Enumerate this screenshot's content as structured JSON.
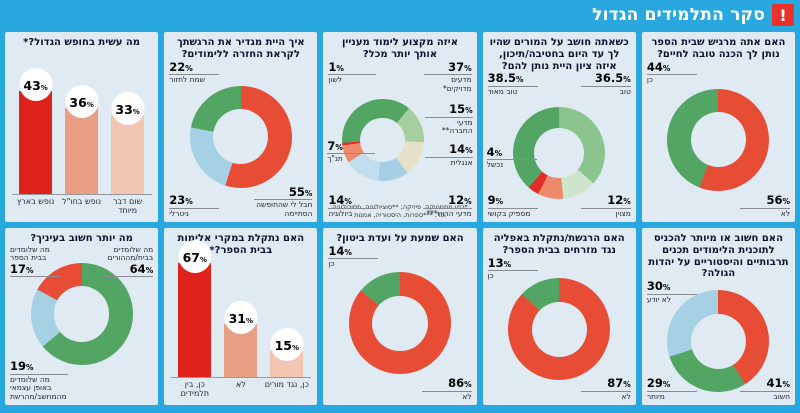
{
  "header": {
    "title": "סקר התלמידים הגדול",
    "icon": "!"
  },
  "unit": "%",
  "colors": {
    "page_bg": "#29a8e0",
    "panel_bg": "#dfeaf2",
    "header_icon_bg": "#e8312a",
    "red": "#e74c35",
    "green": "#52a563",
    "light_green": "#8cc48e",
    "pale_green": "#cfe5cb",
    "beige": "#e5e1c8",
    "light_blue": "#a6d0e4",
    "pale_blue": "#c2ddee",
    "salmon": "#ee8a6b",
    "bar_red": "#df231c",
    "bar_salmon": "#e89f83",
    "bar_pink": "#f2c6b1"
  },
  "chart_data": [
    {
      "id": "prep",
      "type": "donut",
      "start": 0,
      "title": "האם אתה מרגיש שבית הספר נותן לך הכנה טובה לחיים?",
      "slices": [
        {
          "label": "לא",
          "value": 56,
          "color": "#e74c35",
          "pos": "br"
        },
        {
          "label": "כן",
          "value": 44,
          "color": "#52a563",
          "pos": "tl"
        }
      ]
    },
    {
      "id": "teachers",
      "type": "donut",
      "start": 0,
      "title": "כשאתה חושב על המורים שהיו לך עד היום בחטיבה/תיכון, איזה ציון היית נותן להם?",
      "slices": [
        {
          "label": "טוב",
          "value": 36.5,
          "color": "#8cc48e",
          "pos": "tr"
        },
        {
          "label": "מצוין",
          "value": 12,
          "color": "#cfe5cb",
          "pos": "br"
        },
        {
          "label": "מספיק בקושי",
          "value": 9,
          "color": "#ee8a6b",
          "pos": "bl"
        },
        {
          "label": "נכשל",
          "value": 4,
          "color": "#e02d25",
          "pos": "ml"
        },
        {
          "label": "טוב מאוד",
          "value": 38.5,
          "color": "#52a563",
          "pos": "tl"
        }
      ]
    },
    {
      "id": "subject",
      "type": "donut",
      "start": 266,
      "title": "איזה מקצוע לימוד מעניין אותך יותר מכל?",
      "footnote": "*כמו מתמטיקה, פיזיקה; **סוציולוגיה, פסיכולוגיה וכו'; ***ספרות, היסטוריה, אמנות",
      "slices": [
        {
          "label": "מדעים מדויקים*",
          "value": 37,
          "color": "#52a563",
          "pos": "tr"
        },
        {
          "label": "מדעי החברה**",
          "value": 15,
          "color": "#a5cf9f",
          "pos": "r1"
        },
        {
          "label": "אנגלית",
          "value": 14,
          "color": "#e5e1c8",
          "pos": "r2"
        },
        {
          "label": "מדעי הרוח***",
          "value": 12,
          "color": "#a6cfe6",
          "pos": "br"
        },
        {
          "label": "ביולוגיה",
          "value": 14,
          "color": "#c2ddee",
          "pos": "bl"
        },
        {
          "label": "תנ\"ך",
          "value": 7,
          "color": "#ee8a6b",
          "pos": "ml"
        },
        {
          "label": "לשון",
          "value": 1,
          "color": "#e02d25",
          "pos": "tl"
        }
      ]
    },
    {
      "id": "return",
      "type": "donut",
      "start": 0,
      "title": "איך היית מגדיר את הרגשתך לקראת החזרה ללימודים?",
      "slices": [
        {
          "label": "חבל לי שהחופשה הסתיימה",
          "value": 55,
          "color": "#e74c35",
          "pos": "br"
        },
        {
          "label": "ניטרלי",
          "value": 23,
          "color": "#a6d0e4",
          "pos": "bl"
        },
        {
          "label": "שמח לחזור",
          "value": 22,
          "color": "#52a563",
          "pos": "tl"
        }
      ]
    },
    {
      "id": "vacation",
      "type": "bars",
      "scale": 2.4,
      "title": "מה עשית בחופש הגדול?*",
      "bars": [
        {
          "label": "נופש בארץ",
          "value": 43,
          "color": "#df231c"
        },
        {
          "label": "נופש בחו\"ל",
          "value": 36,
          "color": "#e89f83"
        },
        {
          "label": "שום דבר מיוחד",
          "value": 33,
          "color": "#f2c6b1"
        }
      ]
    },
    {
      "id": "diaspora",
      "type": "donut",
      "start": 0,
      "title": "האם חשוב או מיותר להכניס לתוכנית הלימודים תכנים תרבותיים והיסטוריים על יהדות הגולה?",
      "slices": [
        {
          "label": "חשוב",
          "value": 41,
          "color": "#e74c35",
          "pos": "br"
        },
        {
          "label": "מיותר",
          "value": 29,
          "color": "#52a563",
          "pos": "bl"
        },
        {
          "label": "לא יודע",
          "value": 30,
          "color": "#a6d0e4",
          "pos": "tl"
        }
      ]
    },
    {
      "id": "mizrahi",
      "type": "donut",
      "start": 0,
      "title": "האם הרגשת/נתקלת באפליה נגד מזרחים בבית הספר?",
      "slices": [
        {
          "label": "לא",
          "value": 87,
          "color": "#e74c35",
          "pos": "br"
        },
        {
          "label": "כן",
          "value": 13,
          "color": "#52a563",
          "pos": "tl"
        }
      ]
    },
    {
      "id": "biton",
      "type": "donut",
      "start": 0,
      "title": "האם שמעת על ועדת ביטון?",
      "slices": [
        {
          "label": "לא",
          "value": 86,
          "color": "#e74c35",
          "pos": "br"
        },
        {
          "label": "כן",
          "value": 14,
          "color": "#52a563",
          "pos": "tl"
        }
      ]
    },
    {
      "id": "violence",
      "type": "bars",
      "scale": 1.7,
      "title": "האם נתקלת במקרי אלימות בבית הספר?*",
      "bars": [
        {
          "label": "כן, בין תלמידים",
          "value": 67,
          "color": "#df231c"
        },
        {
          "label": "לא",
          "value": 31,
          "color": "#e89f83"
        },
        {
          "label": "כן, נגד מורים",
          "value": 15,
          "color": "#f2c6b1"
        }
      ]
    },
    {
      "id": "important",
      "type": "donut",
      "start": 0,
      "title": "מה יותר חשוב בעיניך?",
      "slices": [
        {
          "label": "מה שלומדים בבית/מההורים",
          "value": 64,
          "color": "#52a563",
          "pos": "tr",
          "nameFirst": true
        },
        {
          "label": "מה שלומדים באופן עצמאי מהמחשב/מהרשת",
          "value": 19,
          "color": "#a6d0e4",
          "pos": "bl"
        },
        {
          "label": "מה שלומדים בבית הספר",
          "value": 17,
          "color": "#e74c35",
          "pos": "tl",
          "nameFirst": true
        }
      ]
    }
  ]
}
